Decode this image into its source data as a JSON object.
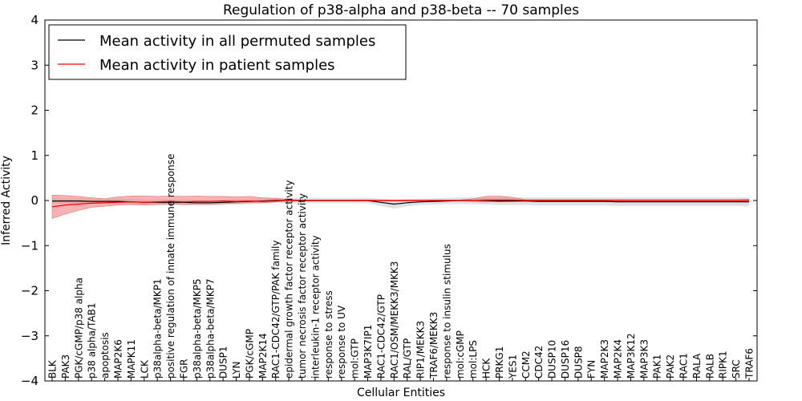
{
  "chart_data": {
    "type": "line",
    "title": "Regulation of p38-alpha and p38-beta -- 70 samples",
    "xlabel": "Cellular Entities",
    "ylabel": "Inferred Activity",
    "ylim": [
      -4,
      4
    ],
    "yticks": [
      "−4",
      "−3",
      "−2",
      "−1",
      "0",
      "1",
      "2",
      "3",
      "4"
    ],
    "legend_position": "top-left",
    "colors": {
      "permuted": "#000000",
      "patient": "#ff0000",
      "patient_band": "#f08080",
      "permuted_band": "#c8c8c8"
    },
    "categories": [
      "BLK",
      "PAK3",
      "PGK/cGMP/p38 alpha",
      "p38 alpha/TAB1",
      "apoptosis",
      "MAP2K6",
      "MAPK11",
      "LCK",
      "p38alpha-beta/MKP1",
      "positive regulation of innate immune response",
      "FGR",
      "p38alpha-beta/MKP5",
      "p38alpha-beta/MKP7",
      "DUSP1",
      "LYN",
      "PGK/cGMP",
      "MAP2K14",
      "RAC1-CDC42/GTP/PAK family",
      "epidermal growth factor receptor activity",
      "tumor necrosis factor receptor activity",
      "interleukin-1 receptor activity",
      "response to stress",
      "response to UV",
      "mol:GTP",
      "MAP3K7IP1",
      "RAC1-CDC42/GTP",
      "RAC1/OSM/MEKK3/MKK3",
      "RAL/GTP",
      "RIP1/MEKK3",
      "TRAF6/MEKK3",
      "response to insulin stimulus",
      "mol:cGMP",
      "mol:LPS",
      "HCK",
      "PRKG1",
      "YES1",
      "CCM2",
      "CDC42",
      "DUSP10",
      "DUSP16",
      "DUSP8",
      "FYN",
      "MAP2K3",
      "MAP2K4",
      "MAP3K12",
      "MAP3K3",
      "PAK1",
      "PAK2",
      "RAC1",
      "RALA",
      "RALB",
      "RIPK1",
      "SRC",
      "TRAF6"
    ],
    "series": [
      {
        "name": "Mean activity in all permuted samples",
        "values": [
          -0.01,
          -0.01,
          -0.01,
          -0.02,
          -0.02,
          -0.02,
          -0.03,
          -0.04,
          -0.04,
          -0.04,
          -0.04,
          -0.05,
          -0.05,
          -0.04,
          -0.03,
          -0.02,
          -0.01,
          0,
          0,
          0,
          0,
          0,
          0,
          0,
          0,
          -0.04,
          -0.08,
          -0.05,
          -0.03,
          -0.02,
          -0.01,
          0,
          0,
          0,
          -0.01,
          -0.01,
          -0.01,
          -0.02,
          -0.02,
          -0.02,
          -0.02,
          -0.02,
          -0.02,
          -0.03,
          -0.03,
          -0.03,
          -0.03,
          -0.03,
          -0.03,
          -0.03,
          -0.03,
          -0.03,
          -0.03,
          -0.03
        ],
        "lower": [
          -0.07,
          -0.07,
          -0.07,
          -0.08,
          -0.08,
          -0.08,
          -0.09,
          -0.1,
          -0.1,
          -0.1,
          -0.1,
          -0.11,
          -0.11,
          -0.1,
          -0.09,
          -0.08,
          -0.07,
          -0.06,
          -0.06,
          -0.06,
          -0.06,
          -0.06,
          -0.06,
          -0.06,
          -0.06,
          -0.12,
          -0.18,
          -0.13,
          -0.1,
          -0.09,
          -0.08,
          -0.08,
          -0.08,
          -0.09,
          -0.1,
          -0.1,
          -0.1,
          -0.11,
          -0.11,
          -0.11,
          -0.11,
          -0.11,
          -0.11,
          -0.12,
          -0.12,
          -0.12,
          -0.12,
          -0.12,
          -0.12,
          -0.12,
          -0.12,
          -0.12,
          -0.12,
          -0.13
        ],
        "upper": [
          0.05,
          0.05,
          0.05,
          0.04,
          0.04,
          0.04,
          0.03,
          0.02,
          0.02,
          0.02,
          0.02,
          0.01,
          0.01,
          0.02,
          0.03,
          0.04,
          0.05,
          0.06,
          0.06,
          0.06,
          0.06,
          0.06,
          0.06,
          0.06,
          0.06,
          0.04,
          0.02,
          0.03,
          0.04,
          0.05,
          0.06,
          0.07,
          0.07,
          0.07,
          0.07,
          0.07,
          0.07,
          0.07,
          0.07,
          0.07,
          0.07,
          0.07,
          0.07,
          0.07,
          0.07,
          0.07,
          0.07,
          0.07,
          0.07,
          0.07,
          0.07,
          0.07,
          0.07,
          0.07
        ]
      },
      {
        "name": "Mean activity in patient samples",
        "values": [
          -0.14,
          -0.1,
          -0.08,
          -0.06,
          -0.05,
          -0.04,
          -0.03,
          -0.04,
          -0.03,
          -0.02,
          -0.03,
          -0.02,
          -0.02,
          -0.01,
          -0.02,
          -0.01,
          -0.02,
          -0.01,
          0,
          0,
          0,
          0,
          0,
          0,
          0,
          0,
          0,
          0,
          0,
          0,
          0,
          0,
          0,
          0.01,
          0.01,
          0.01,
          0,
          0,
          0,
          0,
          0,
          0,
          0,
          0,
          0,
          0,
          0,
          0,
          0,
          0,
          0,
          0,
          0,
          0
        ],
        "lower": [
          -0.4,
          -0.3,
          -0.22,
          -0.15,
          -0.13,
          -0.1,
          -0.09,
          -0.1,
          -0.09,
          -0.08,
          -0.09,
          -0.08,
          -0.08,
          -0.07,
          -0.06,
          -0.05,
          -0.05,
          -0.03,
          -0.01,
          -0.01,
          -0.01,
          -0.01,
          -0.01,
          -0.01,
          -0.01,
          -0.01,
          -0.01,
          -0.01,
          -0.01,
          -0.01,
          -0.01,
          -0.01,
          -0.02,
          -0.03,
          -0.03,
          -0.02,
          -0.01,
          -0.01,
          -0.01,
          -0.01,
          -0.01,
          -0.01,
          -0.01,
          -0.01,
          -0.01,
          -0.01,
          -0.01,
          -0.01,
          -0.01,
          -0.01,
          -0.01,
          -0.01,
          -0.01,
          -0.01
        ],
        "upper": [
          0.12,
          0.11,
          0.09,
          0.06,
          0.04,
          0.08,
          0.1,
          0.1,
          0.09,
          0.1,
          0.09,
          0.1,
          0.09,
          0.09,
          0.08,
          0.09,
          0.06,
          0.05,
          0.02,
          0.01,
          0.01,
          0.01,
          0.01,
          0.01,
          0.01,
          0.01,
          0.01,
          0.01,
          0.01,
          0.01,
          0.01,
          0.01,
          0.04,
          0.09,
          0.1,
          0.07,
          0.02,
          0.02,
          0.02,
          0.02,
          0.02,
          0.02,
          0.02,
          0.02,
          0.02,
          0.02,
          0.02,
          0.02,
          0.02,
          0.02,
          0.02,
          0.02,
          0.02,
          0.03
        ]
      }
    ]
  }
}
